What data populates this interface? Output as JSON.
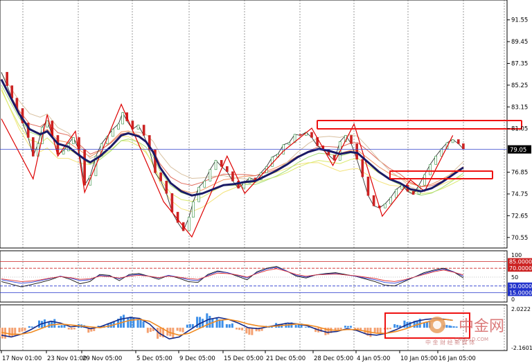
{
  "chart_data": [
    {
      "type": "line",
      "panel": "price",
      "y_ticks": [
        "91.55",
        "89.45",
        "87.35",
        "85.25",
        "83.15",
        "81.05",
        "76.85",
        "74.75",
        "72.65",
        "70.55"
      ],
      "current_price_label": "79.05",
      "ylim": [
        69.8,
        93.2
      ],
      "x_ticks": [
        "17 Nov 01:00",
        "23 Nov 01:00",
        "29 Nov 05:00",
        "5 Dec 05:00",
        "9 Dec 05:00",
        "15 Dec 05:00",
        "21 Dec 05:00",
        "28 Dec 05:00",
        "4 Jan 05:00",
        "10 Jan 05:00",
        "16 Jan 05:00"
      ],
      "series": [
        {
          "x": [
            0,
            12,
            25,
            40,
            55,
            65,
            80,
            95,
            108,
            118,
            126,
            140,
            155,
            170,
            180,
            195,
            205,
            215,
            225,
            240,
            255,
            270,
            285,
            300,
            315,
            330,
            345,
            360,
            375,
            390,
            405,
            420,
            435,
            450,
            465,
            480,
            495,
            505,
            520,
            535,
            550,
            565,
            580,
            595,
            610,
            625,
            640,
            655
          ],
          "values": [
            85.8,
            84.2,
            82.5,
            81.0,
            80.5,
            80.8,
            79.6,
            79.3,
            78.6,
            78.1,
            77.8,
            78.4,
            79.3,
            80.4,
            80.6,
            80.3,
            79.8,
            78.8,
            77.3,
            75.8,
            75.0,
            74.6,
            74.8,
            75.2,
            75.6,
            75.7,
            75.9,
            76.0,
            76.5,
            77.0,
            77.6,
            78.3,
            78.8,
            79.1,
            78.9,
            78.6,
            78.8,
            78.7,
            77.8,
            76.9,
            76.2,
            75.8,
            75.2,
            75.0,
            75.3,
            75.9,
            76.6,
            77.3
          ]
        },
        {
          "name": "zigzag",
          "x": [
            0,
            45,
            65,
            80,
            105,
            118,
            170,
            230,
            270,
            320,
            345,
            400,
            440,
            470,
            500,
            540,
            580,
            600,
            640
          ],
          "values": [
            82.0,
            76.2,
            82.4,
            78.4,
            80.8,
            74.9,
            83.4,
            74.0,
            70.6,
            78.4,
            74.8,
            78.9,
            81.1,
            77.5,
            81.5,
            72.6,
            76.1,
            75.0,
            80.4
          ]
        },
        {
          "name": "price",
          "x": [
            0,
            8,
            15,
            22,
            30,
            38,
            45,
            52,
            58,
            65,
            72,
            80,
            88,
            95,
            102,
            110,
            118,
            126,
            134,
            142,
            150,
            158,
            166,
            172,
            178,
            186,
            194,
            202,
            210,
            218,
            226,
            234,
            242,
            250,
            258,
            266,
            272,
            280,
            288,
            296,
            304,
            312,
            320,
            328,
            336,
            344,
            352,
            360,
            368,
            376,
            384,
            392,
            400,
            408,
            416,
            424,
            432,
            440,
            448,
            456,
            464,
            472,
            480,
            488,
            496,
            504,
            512,
            520,
            528,
            536,
            544,
            552,
            560,
            568,
            576,
            584,
            592,
            600,
            608,
            616,
            624,
            632,
            640,
            648,
            655
          ],
          "values": [
            86.5,
            85.2,
            84.0,
            83.0,
            81.6,
            80.2,
            78.4,
            79.6,
            81.2,
            81.8,
            80.4,
            78.6,
            78.9,
            79.6,
            80.2,
            79.0,
            75.6,
            76.5,
            78.4,
            79.6,
            80.3,
            81.0,
            81.5,
            82.6,
            81.8,
            81.0,
            81.4,
            80.4,
            79.0,
            76.8,
            76.0,
            74.8,
            73.0,
            72.0,
            71.2,
            72.5,
            74.0,
            75.4,
            76.0,
            77.1,
            78.0,
            77.4,
            76.9,
            76.0,
            75.3,
            75.8,
            76.3,
            76.1,
            76.8,
            77.4,
            78.3,
            78.6,
            79.5,
            79.7,
            80.5,
            80.4,
            80.7,
            80.2,
            79.4,
            79.0,
            78.5,
            78.0,
            79.8,
            80.4,
            79.6,
            78.1,
            76.4,
            74.6,
            73.6,
            73.4,
            73.8,
            74.4,
            75.2,
            75.6,
            75.0,
            74.7,
            75.6,
            76.6,
            77.6,
            78.4,
            79.1,
            79.7,
            80.0,
            79.6,
            79.1
          ]
        }
      ],
      "annotation_rects": 3,
      "colors": {
        "price_up": "#cc2222",
        "ma_bold": "#1a1a66",
        "zigzag": "#dd0000",
        "box": "#ee1111",
        "current_line": "#3344cc"
      }
    },
    {
      "type": "line",
      "panel": "oscillator",
      "levels": [
        "85.0000",
        "70.0000",
        "30.0000",
        "15.0000"
      ],
      "y_ticks": [
        "100",
        "50",
        "0"
      ],
      "ylim": [
        0,
        100
      ],
      "series": [
        {
          "name": "black",
          "values": [
            40,
            34,
            28,
            33,
            38,
            44,
            52,
            45,
            35,
            40,
            56,
            54,
            42,
            56,
            58,
            52,
            45,
            54,
            48,
            40,
            38,
            56,
            64,
            60,
            52,
            44,
            62,
            70,
            74,
            64,
            52,
            48,
            55,
            58,
            60,
            56,
            52,
            46,
            40,
            32,
            30,
            40,
            50,
            60,
            66,
            70,
            62,
            48
          ]
        },
        {
          "name": "blue",
          "values": [
            44,
            40,
            36,
            38,
            42,
            47,
            52,
            48,
            42,
            44,
            54,
            52,
            46,
            54,
            56,
            52,
            48,
            54,
            50,
            44,
            42,
            54,
            62,
            60,
            54,
            48,
            60,
            68,
            72,
            64,
            54,
            50,
            55,
            57,
            58,
            55,
            52,
            48,
            44,
            38,
            36,
            42,
            50,
            58,
            64,
            68,
            62,
            52
          ]
        },
        {
          "name": "red",
          "values": [
            46,
            43,
            40,
            41,
            44,
            48,
            51,
            49,
            45,
            46,
            52,
            51,
            48,
            52,
            54,
            52,
            49,
            52,
            50,
            47,
            45,
            52,
            59,
            58,
            55,
            50,
            58,
            65,
            69,
            63,
            56,
            52,
            55,
            56,
            57,
            55,
            53,
            50,
            47,
            42,
            40,
            44,
            50,
            56,
            62,
            66,
            61,
            55
          ]
        }
      ]
    },
    {
      "type": "bar",
      "panel": "macd",
      "y_ticks": [
        "2.0222",
        "-2.1601"
      ],
      "ylim": [
        -2.1601,
        2.0222
      ],
      "x": [
        0,
        14,
        28,
        42,
        56,
        70,
        84,
        98,
        112,
        126,
        140,
        154,
        168,
        182,
        196,
        210,
        224,
        238,
        252,
        266,
        280,
        294,
        308,
        322,
        336,
        350,
        364,
        378,
        392,
        406,
        420,
        434,
        448,
        462,
        476,
        490,
        504,
        518,
        532,
        546,
        560,
        574,
        588,
        602,
        616,
        630,
        640
      ],
      "values": [
        -1.2,
        -1.0,
        -0.5,
        0.2,
        1.2,
        1.0,
        0.3,
        -0.2,
        0.4,
        -0.6,
        0.3,
        0.8,
        1.4,
        1.2,
        0.9,
        -0.6,
        -1.6,
        -1.4,
        -0.5,
        0.4,
        1.2,
        1.6,
        1.4,
        0.6,
        -0.3,
        -0.8,
        -0.4,
        0.2,
        0.6,
        0.8,
        0.5,
        0.1,
        -0.5,
        -0.8,
        -0.3,
        0.3,
        -0.4,
        -1.0,
        -0.6,
        -0.2,
        0.4,
        1.0,
        1.2,
        0.8,
        0.6,
        0.3,
        0.2
      ],
      "series": [
        {
          "name": "navy",
          "values": [
            -0.8,
            -1.0,
            -0.7,
            -0.2,
            0.4,
            0.7,
            0.5,
            0.1,
            0.2,
            -0.1,
            0.1,
            0.5,
            0.9,
            1.1,
            1.0,
            0.4,
            -0.6,
            -1.2,
            -1.0,
            -0.3,
            0.4,
            0.9,
            1.1,
            0.9,
            0.5,
            0.0,
            -0.1,
            0.1,
            0.3,
            0.5,
            0.4,
            0.2,
            -0.2,
            -0.5,
            -0.4,
            -0.1,
            -0.3,
            -0.7,
            -0.8,
            -0.6,
            -0.2,
            0.3,
            0.7,
            0.9,
            1.0,
            0.9,
            0.8
          ]
        },
        {
          "name": "orange",
          "values": [
            -0.5,
            -0.7,
            -0.7,
            -0.5,
            -0.1,
            0.3,
            0.4,
            0.3,
            0.2,
            0.1,
            0.0,
            0.2,
            0.5,
            0.8,
            0.9,
            0.7,
            0.1,
            -0.5,
            -0.8,
            -0.6,
            -0.1,
            0.4,
            0.8,
            0.9,
            0.7,
            0.4,
            0.2,
            0.1,
            0.2,
            0.3,
            0.4,
            0.3,
            0.1,
            -0.2,
            -0.3,
            -0.2,
            -0.2,
            -0.4,
            -0.6,
            -0.6,
            -0.4,
            -0.1,
            0.3,
            0.6,
            0.8,
            0.9,
            0.8
          ]
        }
      ],
      "colors": {
        "pos": "#3d8fe8",
        "neg": "#f4a070",
        "line1": "#142a8a",
        "line2": "#f08a20"
      }
    }
  ],
  "watermark": {
    "brand": "中金网",
    "sub": "中  金  财  经  新  媒  体",
    "domain": "CNGOLD.COM"
  }
}
